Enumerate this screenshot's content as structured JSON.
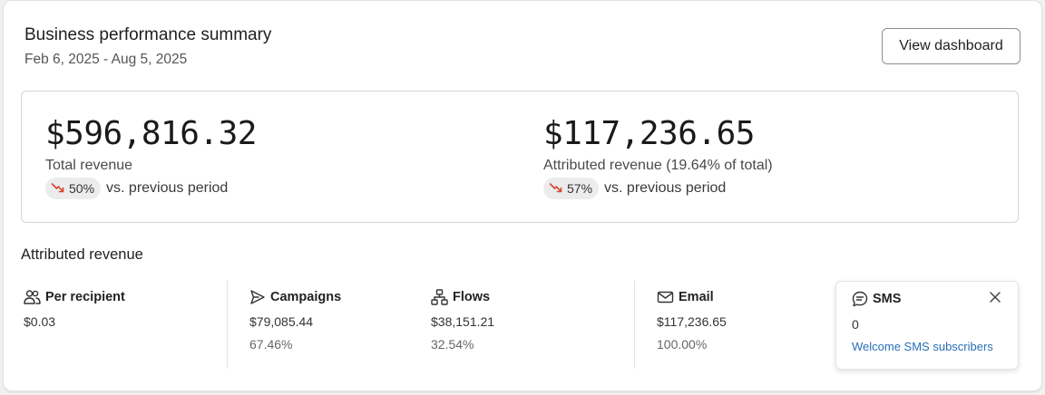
{
  "header": {
    "title": "Business performance summary",
    "date_range": "Feb 6, 2025 - Aug 5, 2025",
    "view_dashboard_label": "View dashboard"
  },
  "summary": {
    "total": {
      "value": "$596,816.32",
      "label": "Total revenue",
      "change_pct": "50%",
      "change_text": "vs. previous period",
      "trend": "down"
    },
    "attributed": {
      "value": "$117,236.65",
      "label": "Attributed revenue (19.64% of total)",
      "change_pct": "57%",
      "change_text": "vs. previous period",
      "trend": "down"
    }
  },
  "attributed_section": {
    "title": "Attributed revenue",
    "stats": [
      {
        "label": "Per recipient",
        "icon": "people-icon",
        "value": "$0.03",
        "percent": ""
      },
      {
        "label": "Campaigns",
        "icon": "send-icon",
        "value": "$79,085.44",
        "percent": "67.46%"
      },
      {
        "label": "Flows",
        "icon": "flow-icon",
        "value": "$38,151.21",
        "percent": "32.54%"
      },
      {
        "label": "Email",
        "icon": "mail-icon",
        "value": "$117,236.65",
        "percent": "100.00%"
      }
    ],
    "sms": {
      "label": "SMS",
      "icon": "chat-icon",
      "value": "0",
      "link": "Welcome SMS subscribers"
    }
  },
  "colors": {
    "trend_down": "#d8432e",
    "link": "#2a6fb7",
    "pill_bg": "#ececec"
  }
}
